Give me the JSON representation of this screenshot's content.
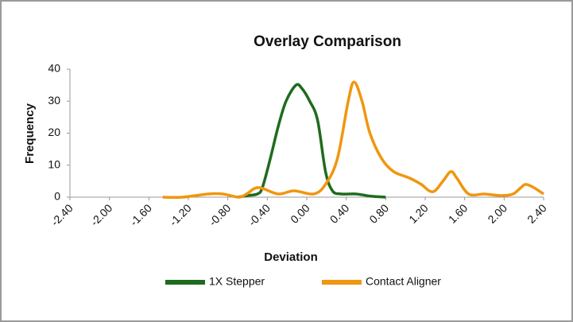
{
  "chart_data": {
    "type": "line",
    "title": "Overlay Comparison",
    "x_label": "Deviation",
    "y_label": "Frequency",
    "xlim": [
      -2.4,
      2.4
    ],
    "ylim": [
      0,
      40
    ],
    "xticks": [
      {
        "value": -2.4,
        "label": "-2.40"
      },
      {
        "value": -2.0,
        "label": "-2.00"
      },
      {
        "value": -1.6,
        "label": "-1.60"
      },
      {
        "value": -1.2,
        "label": "-1.20"
      },
      {
        "value": -0.8,
        "label": "-0.80"
      },
      {
        "value": -0.4,
        "label": "-0.40"
      },
      {
        "value": 0,
        "label": "0.00"
      },
      {
        "value": 0.4,
        "label": "0.40"
      },
      {
        "value": 0.8,
        "label": "0.80"
      },
      {
        "value": 1.2,
        "label": "1.20"
      },
      {
        "value": 1.6,
        "label": "1.60"
      },
      {
        "value": 2.0,
        "label": "2.00"
      },
      {
        "value": 2.4,
        "label": "2.40"
      }
    ],
    "yticks": [
      0,
      10,
      20,
      30,
      40
    ],
    "legend": "bottom",
    "series": [
      {
        "name": "1X Stepper",
        "color": "#1e6b1e",
        "x": [
          -0.7,
          -0.6,
          -0.5,
          -0.45,
          -0.37,
          -0.29,
          -0.21,
          -0.11,
          -0.05,
          0.03,
          0.11,
          0.19,
          0.26,
          0.35,
          0.5,
          0.65,
          0.8
        ],
        "values": [
          0,
          0.5,
          1,
          3,
          12,
          22,
          30,
          35,
          34,
          30,
          24,
          8,
          2,
          1,
          1,
          0.3,
          0
        ]
      },
      {
        "name": "Contact Aligner",
        "color": "#f0960f",
        "x": [
          -1.46,
          -1.26,
          -1.0,
          -0.85,
          -0.69,
          -0.61,
          -0.49,
          -0.29,
          -0.13,
          0.07,
          0.19,
          0.31,
          0.42,
          0.48,
          0.56,
          0.64,
          0.76,
          0.88,
          1.04,
          1.16,
          1.24,
          1.3,
          1.38,
          1.46,
          1.52,
          1.64,
          1.8,
          1.97,
          2.09,
          2.17,
          2.22,
          2.3,
          2.4
        ],
        "values": [
          0,
          0,
          1,
          1,
          0,
          1,
          3,
          1,
          2,
          1,
          4,
          12,
          30,
          36,
          30,
          20,
          12,
          8,
          6,
          4,
          2,
          2,
          5,
          8,
          6,
          1,
          1,
          0.5,
          1,
          3,
          4,
          3,
          1
        ]
      }
    ]
  }
}
